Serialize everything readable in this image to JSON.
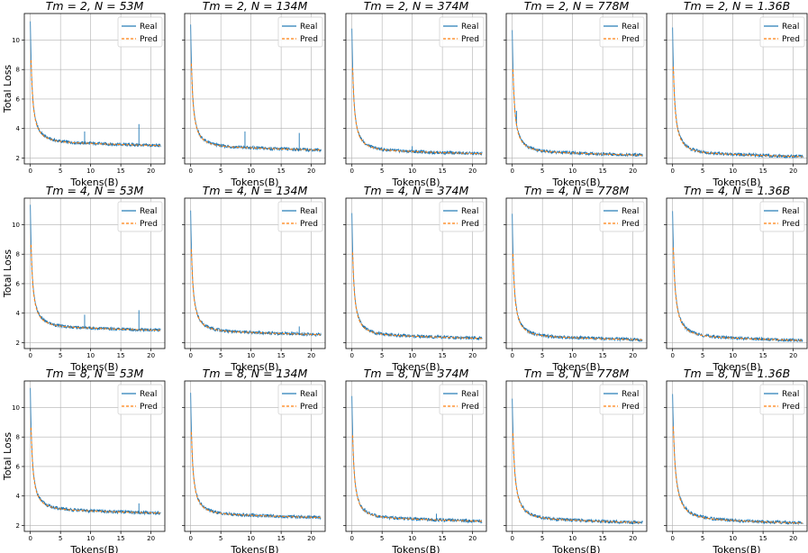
{
  "chart_data": {
    "type": "line",
    "layout": {
      "rows": 3,
      "cols": 5
    },
    "xlim": [
      -1,
      22.3
    ],
    "ylim": [
      1.6,
      11.8
    ],
    "xticks": [
      0,
      5,
      10,
      15,
      20
    ],
    "yticks": [
      2,
      4,
      6,
      8,
      10
    ],
    "xlabel": "Tokens(B)",
    "ylabel": "Total Loss",
    "legend": [
      "Real",
      "Pred"
    ],
    "legend_position": "upper right",
    "grid": true,
    "colors": {
      "real": "#1f77b4",
      "pred": "#ff7f0e"
    },
    "panels": [
      {
        "title": "Tm = 2, N = 53M",
        "row": 0,
        "col": 0,
        "start": 11.3,
        "floor": 2.9,
        "k": 2.6,
        "spikes": [
          [
            9,
            3.8
          ],
          [
            18,
            4.3
          ]
        ]
      },
      {
        "title": "Tm = 2, N = 134M",
        "row": 0,
        "col": 1,
        "start": 11.1,
        "floor": 2.6,
        "k": 2.6,
        "spikes": [
          [
            9,
            3.8
          ],
          [
            18,
            3.7
          ]
        ]
      },
      {
        "title": "Tm = 2, N = 374M",
        "row": 0,
        "col": 2,
        "start": 10.8,
        "floor": 2.35,
        "k": 2.6,
        "spikes": [
          [
            10,
            2.8
          ]
        ]
      },
      {
        "title": "Tm = 2, N = 778M",
        "row": 0,
        "col": 3,
        "start": 10.7,
        "floor": 2.25,
        "k": 2.6,
        "spikes": [
          [
            0.7,
            5.2
          ]
        ]
      },
      {
        "title": "Tm = 2, N = 1.36B",
        "row": 0,
        "col": 4,
        "start": 10.9,
        "floor": 2.15,
        "k": 2.5,
        "spikes": []
      },
      {
        "title": "Tm = 4, N = 53M",
        "row": 1,
        "col": 0,
        "start": 11.3,
        "floor": 2.9,
        "k": 2.6,
        "spikes": [
          [
            9,
            3.9
          ],
          [
            18,
            4.2
          ]
        ]
      },
      {
        "title": "Tm = 4, N = 134M",
        "row": 1,
        "col": 1,
        "start": 11.0,
        "floor": 2.6,
        "k": 2.6,
        "spikes": [
          [
            18,
            3.1
          ]
        ]
      },
      {
        "title": "Tm = 4, N = 374M",
        "row": 1,
        "col": 2,
        "start": 10.8,
        "floor": 2.35,
        "k": 2.6,
        "spikes": []
      },
      {
        "title": "Tm = 4, N = 778M",
        "row": 1,
        "col": 3,
        "start": 10.7,
        "floor": 2.25,
        "k": 2.6,
        "spikes": []
      },
      {
        "title": "Tm = 4, N = 1.36B",
        "row": 1,
        "col": 4,
        "start": 10.9,
        "floor": 2.2,
        "k": 2.2,
        "spikes": []
      },
      {
        "title": "Tm = 8, N = 53M",
        "row": 2,
        "col": 0,
        "start": 11.3,
        "floor": 2.9,
        "k": 2.6,
        "spikes": [
          [
            18,
            3.5
          ]
        ]
      },
      {
        "title": "Tm = 8, N = 134M",
        "row": 2,
        "col": 1,
        "start": 11.0,
        "floor": 2.6,
        "k": 2.6,
        "spikes": []
      },
      {
        "title": "Tm = 8, N = 374M",
        "row": 2,
        "col": 2,
        "start": 10.8,
        "floor": 2.35,
        "k": 2.6,
        "spikes": [
          [
            14,
            2.8
          ]
        ]
      },
      {
        "title": "Tm = 8, N = 778M",
        "row": 2,
        "col": 3,
        "start": 10.6,
        "floor": 2.25,
        "k": 2.2,
        "spikes": []
      },
      {
        "title": "Tm = 8, N = 1.36B",
        "row": 2,
        "col": 4,
        "start": 10.9,
        "floor": 2.2,
        "k": 1.9,
        "spikes": []
      }
    ]
  }
}
